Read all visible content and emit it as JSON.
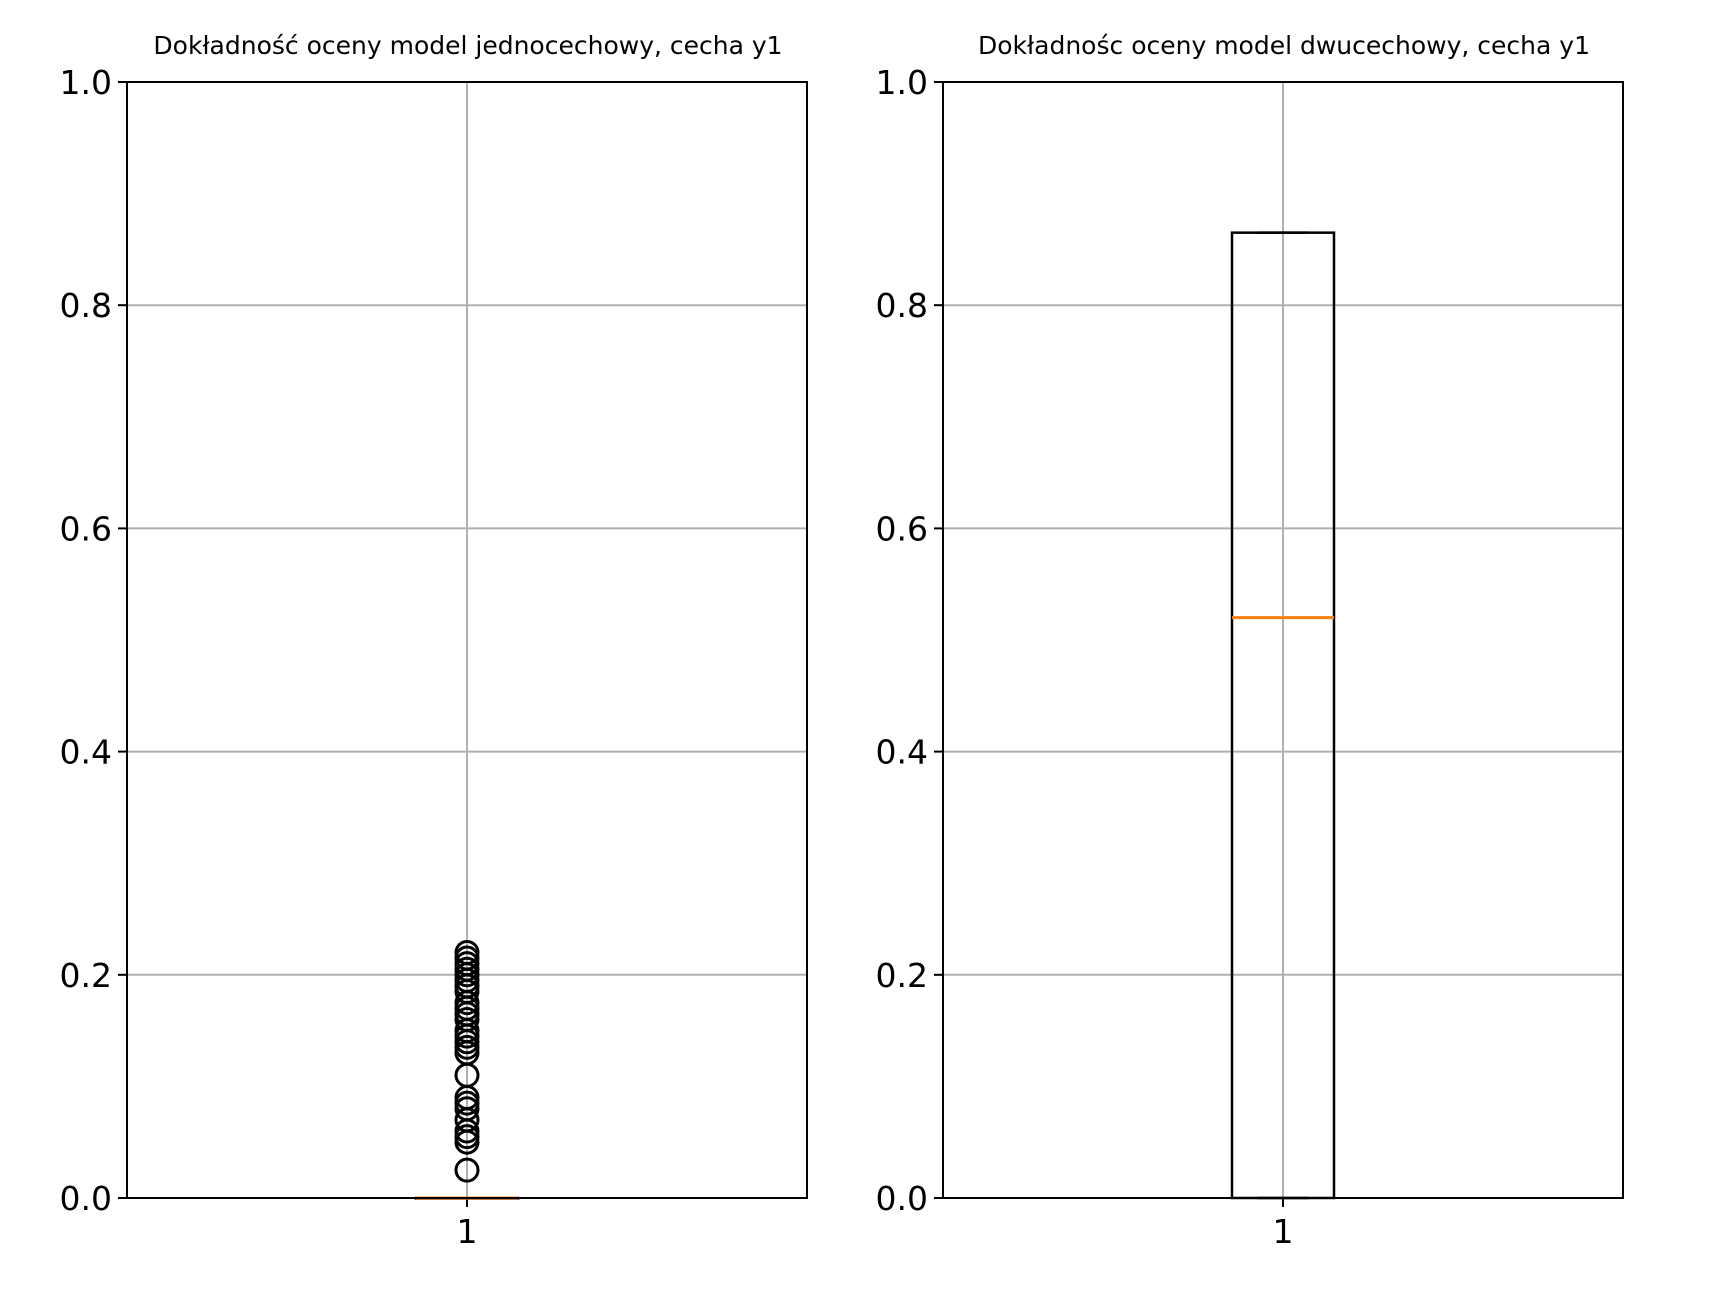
{
  "chart_data": [
    {
      "type": "boxplot",
      "title": "Dokładność oceny model jednocechowy, cecha y1",
      "xlabel": "",
      "ylabel": "",
      "categories": [
        "1"
      ],
      "ylim": [
        0,
        1
      ],
      "yticks": [
        "0.0",
        "0.2",
        "0.4",
        "0.6",
        "0.8",
        "1.0"
      ],
      "grid": true,
      "box": {
        "q1": 0.0,
        "median": 0.0,
        "q3": 0.0,
        "whisker_low": 0.0,
        "whisker_high": 0.0
      },
      "outliers": [
        0.025,
        0.05,
        0.055,
        0.06,
        0.07,
        0.08,
        0.085,
        0.09,
        0.11,
        0.13,
        0.135,
        0.14,
        0.145,
        0.15,
        0.16,
        0.165,
        0.17,
        0.175,
        0.185,
        0.19,
        0.195,
        0.2,
        0.205,
        0.21,
        0.215,
        0.22
      ]
    },
    {
      "type": "boxplot",
      "title": "Dokładnośc oceny model dwucechowy, cecha y1",
      "xlabel": "",
      "ylabel": "",
      "categories": [
        "1"
      ],
      "ylim": [
        0,
        1
      ],
      "yticks": [
        "0.0",
        "0.2",
        "0.4",
        "0.6",
        "0.8",
        "1.0"
      ],
      "grid": true,
      "box": {
        "q1": 0.0,
        "median": 0.52,
        "q3": 0.865,
        "whisker_low": 0.0,
        "whisker_high": 0.865
      },
      "outliers": []
    }
  ],
  "colors": {
    "box": "#000000",
    "median": "#ff7f0e",
    "grid": "#b0b0b0",
    "outlier": "#000000"
  }
}
